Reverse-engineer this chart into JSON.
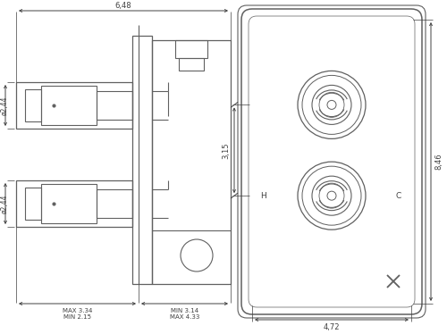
{
  "bg_color": "#ffffff",
  "line_color": "#606060",
  "dim_color": "#404040",
  "fig_width": 5.0,
  "fig_height": 3.74,
  "dpi": 100,
  "annotations": {
    "dim_648": "6,48",
    "dim_244_top": "ø2,44",
    "dim_244_bot": "ø2,44",
    "dim_315": "3,15",
    "dim_846": "8,46",
    "dim_472": "4,72",
    "dim_max334": "MAX 3.34",
    "dim_min215": "MIN 2.15",
    "dim_min314": "MIN 3.14",
    "dim_max433": "MAX 4.33",
    "label_h": "H",
    "label_c": "C"
  }
}
